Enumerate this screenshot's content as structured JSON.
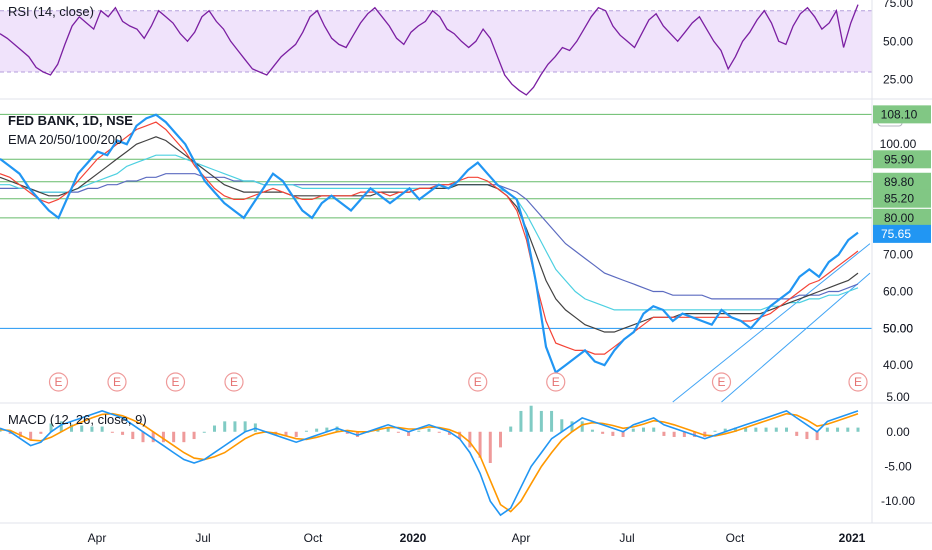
{
  "chart_data": [
    {
      "panel": "rsi",
      "type": "line",
      "title": "RSI (14, close)",
      "band": [
        30,
        70
      ],
      "ylim": [
        13,
        77
      ],
      "y_ticks": [
        25,
        50,
        75
      ],
      "y_tick_labels": [
        "25.00",
        "50.00",
        "75.00"
      ],
      "color": "#7b1fa2",
      "band_color": "#f0e3fb",
      "series": [
        {
          "values": [
            55,
            52,
            48,
            44,
            40,
            33,
            30,
            28,
            35,
            48,
            60,
            66,
            62,
            58,
            70,
            66,
            72,
            63,
            60,
            58,
            52,
            60,
            70,
            66,
            62,
            55,
            50,
            56,
            66,
            70,
            63,
            58,
            50,
            44,
            38,
            32,
            30,
            28,
            34,
            40,
            44,
            48,
            56,
            66,
            70,
            60,
            52,
            48,
            46,
            54,
            62,
            68,
            72,
            66,
            60,
            52,
            48,
            56,
            60,
            63,
            70,
            66,
            58,
            55,
            50,
            46,
            50,
            58,
            52,
            40,
            28,
            22,
            18,
            15,
            20,
            28,
            35,
            40,
            46,
            44,
            50,
            58,
            66,
            72,
            70,
            60,
            54,
            50,
            46,
            55,
            64,
            68,
            60,
            55,
            50,
            56,
            62,
            66,
            58,
            50,
            44,
            32,
            40,
            50,
            56,
            64,
            70,
            62,
            50,
            48,
            60,
            68,
            72,
            66,
            58,
            62,
            70,
            46,
            62,
            74
          ]
        }
      ]
    },
    {
      "panel": "price",
      "type": "line",
      "title": "FED BANK, 1D, NSE",
      "subtitle": "EMA 20/50/100/200",
      "currency": "INR",
      "ylim": [
        30,
        112
      ],
      "y_ticks": [
        40,
        50,
        60,
        70,
        100
      ],
      "y_tick_labels": [
        "40.00",
        "50.00",
        "60.00",
        "70.00",
        "100.00"
      ],
      "price_levels": [
        {
          "value": 108.1,
          "label": "108.10",
          "color": "#66bb6a"
        },
        {
          "value": 95.9,
          "label": "95.90",
          "color": "#66bb6a"
        },
        {
          "value": 89.8,
          "label": "89.80",
          "color": "#66bb6a"
        },
        {
          "value": 85.2,
          "label": "85.20",
          "color": "#66bb6a"
        },
        {
          "value": 80.0,
          "label": "80.00",
          "color": "#66bb6a"
        },
        {
          "value": 50.0,
          "label": "50.00",
          "color": "#2196f3"
        }
      ],
      "last_price": {
        "value": 75.65,
        "label": "75.65",
        "color": "#2196f3"
      },
      "series": [
        {
          "name": "Price",
          "color": "#2196f3",
          "values": [
            96,
            94,
            92,
            88,
            85,
            82,
            80,
            86,
            92,
            95,
            98,
            97,
            101,
            100,
            105,
            107,
            108,
            106,
            103,
            100,
            95,
            90,
            87,
            84,
            82,
            80,
            84,
            88,
            92,
            90,
            86,
            82,
            80,
            84,
            86,
            84,
            82,
            85,
            88,
            86,
            84,
            86,
            88,
            85,
            87,
            89,
            88,
            90,
            93,
            95,
            92,
            89,
            87,
            85,
            76,
            62,
            45,
            38,
            40,
            42,
            44,
            41,
            40,
            44,
            47,
            49,
            54,
            56,
            55,
            52,
            54,
            53,
            52,
            51,
            55,
            53,
            52,
            50,
            53,
            56,
            58,
            60,
            64,
            66,
            64,
            68,
            70,
            74,
            76
          ]
        },
        {
          "name": "EMA 20",
          "color": "#f44336",
          "values": [
            92,
            91,
            89,
            87,
            85,
            84,
            85,
            87,
            90,
            93,
            96,
            98,
            100,
            102,
            104,
            105,
            106,
            104,
            101,
            98,
            94,
            91,
            88,
            86,
            85,
            85,
            86,
            87,
            88,
            87,
            86,
            85,
            85,
            86,
            86,
            86,
            86,
            87,
            87,
            87,
            86,
            87,
            87,
            88,
            88,
            89,
            89,
            90,
            91,
            91,
            90,
            88,
            86,
            82,
            74,
            62,
            52,
            46,
            45,
            44,
            44,
            43,
            43,
            45,
            47,
            49,
            51,
            53,
            53,
            53,
            53,
            53,
            53,
            53,
            53,
            53,
            52,
            52,
            53,
            54,
            56,
            58,
            60,
            62,
            63,
            65,
            67,
            69,
            71
          ]
        },
        {
          "name": "EMA 50",
          "color": "#424242",
          "values": [
            91,
            90,
            89,
            88,
            87,
            86,
            86,
            87,
            88,
            90,
            92,
            94,
            96,
            98,
            100,
            101,
            102,
            101,
            99,
            97,
            95,
            93,
            91,
            89,
            88,
            87,
            87,
            87,
            87,
            87,
            86,
            86,
            86,
            86,
            86,
            86,
            86,
            86,
            86,
            87,
            87,
            87,
            87,
            88,
            88,
            88,
            88,
            89,
            89,
            89,
            89,
            88,
            86,
            83,
            77,
            70,
            63,
            58,
            55,
            53,
            51,
            50,
            49,
            49,
            50,
            51,
            52,
            53,
            53,
            53,
            54,
            54,
            54,
            54,
            54,
            54,
            54,
            54,
            54,
            55,
            56,
            57,
            58,
            59,
            60,
            61,
            62,
            63,
            65
          ]
        },
        {
          "name": "EMA 100",
          "color": "#4dd0e1",
          "values": [
            89,
            89,
            88,
            88,
            87,
            87,
            87,
            87,
            88,
            89,
            90,
            91,
            92,
            94,
            95,
            96,
            97,
            97,
            97,
            96,
            95,
            94,
            93,
            92,
            91,
            90,
            90,
            89,
            89,
            89,
            89,
            88,
            88,
            88,
            88,
            88,
            88,
            88,
            88,
            88,
            88,
            88,
            88,
            88,
            88,
            88,
            88,
            89,
            89,
            89,
            89,
            88,
            87,
            85,
            81,
            76,
            71,
            66,
            63,
            60,
            58,
            57,
            56,
            55,
            55,
            55,
            55,
            55,
            55,
            55,
            55,
            55,
            55,
            55,
            55,
            55,
            55,
            55,
            55,
            56,
            56,
            57,
            57,
            58,
            58,
            59,
            59,
            60,
            61
          ]
        },
        {
          "name": "EMA 200",
          "color": "#5c6bc0",
          "values": [
            88,
            88,
            88,
            88,
            87,
            87,
            87,
            87,
            87,
            88,
            88,
            89,
            89,
            90,
            90,
            91,
            91,
            92,
            92,
            92,
            92,
            91,
            91,
            91,
            90,
            90,
            90,
            89,
            89,
            89,
            89,
            89,
            89,
            89,
            89,
            89,
            89,
            89,
            89,
            89,
            89,
            89,
            89,
            89,
            89,
            89,
            89,
            89,
            89,
            89,
            89,
            89,
            88,
            87,
            85,
            82,
            79,
            76,
            73,
            71,
            69,
            67,
            65,
            64,
            63,
            62,
            61,
            60,
            60,
            59,
            59,
            59,
            59,
            58,
            58,
            58,
            58,
            58,
            58,
            58,
            58,
            58,
            59,
            59,
            59,
            60,
            60,
            61,
            62
          ]
        }
      ],
      "earnings_markers": [
        {
          "index": 6,
          "label": "E"
        },
        {
          "index": 12,
          "label": "E"
        },
        {
          "index": 18,
          "label": "E"
        },
        {
          "index": 24,
          "label": "E"
        },
        {
          "index": 49,
          "label": "E"
        },
        {
          "index": 57,
          "label": "E"
        },
        {
          "index": 74,
          "label": "E"
        },
        {
          "index": 88,
          "label": "E"
        }
      ]
    },
    {
      "panel": "macd",
      "type": "line",
      "title": "MACD (12, 26, close, 9)",
      "ylim": [
        -13,
        4
      ],
      "y_ticks": [
        -10,
        -5,
        0,
        5
      ],
      "y_tick_labels": [
        "-10.00",
        "-5.00",
        "0.00",
        "5.00"
      ],
      "series": [
        {
          "name": "MACD",
          "color": "#2196f3",
          "values": [
            0.5,
            0,
            -1,
            -2,
            -1.5,
            0,
            1,
            1.5,
            2,
            2.5,
            3,
            2.5,
            2,
            1,
            0,
            -1,
            -2,
            -3,
            -4,
            -4.5,
            -4,
            -3,
            -2,
            -1,
            0,
            0.5,
            0,
            -0.5,
            -1,
            -1.5,
            -1,
            -0.5,
            0,
            0.5,
            0,
            -0.5,
            0,
            0.5,
            1,
            0.5,
            0,
            0.5,
            1,
            0.5,
            0,
            -1,
            -3,
            -6,
            -10,
            -12,
            -11,
            -8,
            -5,
            -3,
            -1,
            0,
            1,
            2,
            1.5,
            1,
            0.5,
            0,
            1,
            1.5,
            2,
            1,
            0.5,
            0,
            -0.5,
            -1,
            -0.5,
            0,
            0.5,
            1,
            1.5,
            2,
            2.5,
            3,
            2,
            1,
            0,
            1.5,
            2,
            2.5,
            3
          ]
        },
        {
          "name": "Signal",
          "color": "#ff9800",
          "values": [
            0.3,
            0.2,
            -0.5,
            -1.2,
            -1.3,
            -0.8,
            0,
            0.8,
            1.4,
            2,
            2.5,
            2.6,
            2.3,
            1.7,
            1,
            0,
            -1,
            -2,
            -3,
            -3.8,
            -4,
            -3.6,
            -3,
            -2,
            -1,
            -0.3,
            0,
            -0.2,
            -0.6,
            -1,
            -1.1,
            -0.8,
            -0.4,
            0,
            0.2,
            0,
            0,
            0.3,
            0.6,
            0.6,
            0.4,
            0.4,
            0.7,
            0.6,
            0.3,
            -0.3,
            -1.5,
            -3.5,
            -7,
            -10.5,
            -11.5,
            -10,
            -7.5,
            -5,
            -3,
            -1.2,
            0,
            1,
            1.3,
            1.2,
            0.9,
            0.5,
            0.7,
            1.1,
            1.6,
            1.4,
            1,
            0.5,
            0,
            -0.5,
            -0.6,
            -0.3,
            0.1,
            0.6,
            1.1,
            1.6,
            2.1,
            2.6,
            2.4,
            1.7,
            0.8,
            1.1,
            1.6,
            2.1,
            2.6
          ]
        }
      ]
    }
  ],
  "x_axis": {
    "labels": [
      {
        "text": "Apr",
        "bold": false
      },
      {
        "text": "Jul",
        "bold": false
      },
      {
        "text": "Oct",
        "bold": false
      },
      {
        "text": "2020",
        "bold": true
      },
      {
        "text": "Apr",
        "bold": false
      },
      {
        "text": "Jul",
        "bold": false
      },
      {
        "text": "Oct",
        "bold": false
      },
      {
        "text": "2021",
        "bold": true
      }
    ]
  }
}
